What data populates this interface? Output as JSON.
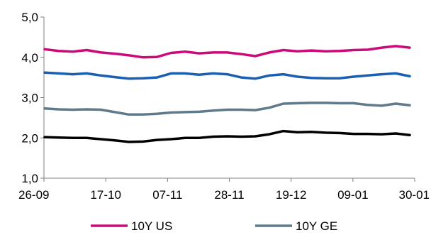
{
  "chart_data": {
    "type": "line",
    "title": "",
    "xlabel": "",
    "ylabel": "",
    "ylim": [
      1.0,
      5.0
    ],
    "yticks": [
      "5,0",
      "4,0",
      "3,0",
      "2,0",
      "1,0"
    ],
    "ytick_values": [
      5.0,
      4.0,
      3.0,
      2.0,
      1.0
    ],
    "xticks": [
      "26-09",
      "17-10",
      "07-11",
      "28-11",
      "19-12",
      "09-01",
      "30-01"
    ],
    "grid": false,
    "legend": "bottom",
    "series": [
      {
        "name": "10Y US",
        "color": "#cc0b7a",
        "in_legend": true,
        "values": [
          4.2,
          4.16,
          4.14,
          4.18,
          4.12,
          4.09,
          4.05,
          4.0,
          4.01,
          4.11,
          4.14,
          4.1,
          4.12,
          4.12,
          4.08,
          4.03,
          4.12,
          4.18,
          4.15,
          4.17,
          4.15,
          4.16,
          4.18,
          4.19,
          4.24,
          4.28,
          4.24
        ]
      },
      {
        "name": "",
        "color": "#1b5fb2",
        "in_legend": false,
        "values": [
          3.62,
          3.6,
          3.58,
          3.6,
          3.55,
          3.51,
          3.47,
          3.48,
          3.5,
          3.6,
          3.6,
          3.57,
          3.6,
          3.58,
          3.5,
          3.47,
          3.55,
          3.58,
          3.52,
          3.49,
          3.48,
          3.48,
          3.52,
          3.55,
          3.58,
          3.6,
          3.53
        ]
      },
      {
        "name": "10Y GE",
        "color": "#5f7a8a",
        "in_legend": true,
        "values": [
          2.73,
          2.71,
          2.7,
          2.71,
          2.7,
          2.64,
          2.58,
          2.58,
          2.6,
          2.63,
          2.64,
          2.65,
          2.68,
          2.7,
          2.7,
          2.69,
          2.75,
          2.85,
          2.86,
          2.87,
          2.87,
          2.86,
          2.86,
          2.82,
          2.8,
          2.85,
          2.81
        ]
      },
      {
        "name": "",
        "color": "#000000",
        "in_legend": false,
        "values": [
          2.02,
          2.01,
          2.0,
          2.0,
          1.97,
          1.94,
          1.9,
          1.91,
          1.95,
          1.97,
          2.0,
          2.0,
          2.03,
          2.04,
          2.03,
          2.04,
          2.09,
          2.17,
          2.14,
          2.15,
          2.13,
          2.12,
          2.1,
          2.1,
          2.09,
          2.11,
          2.07
        ]
      }
    ]
  }
}
